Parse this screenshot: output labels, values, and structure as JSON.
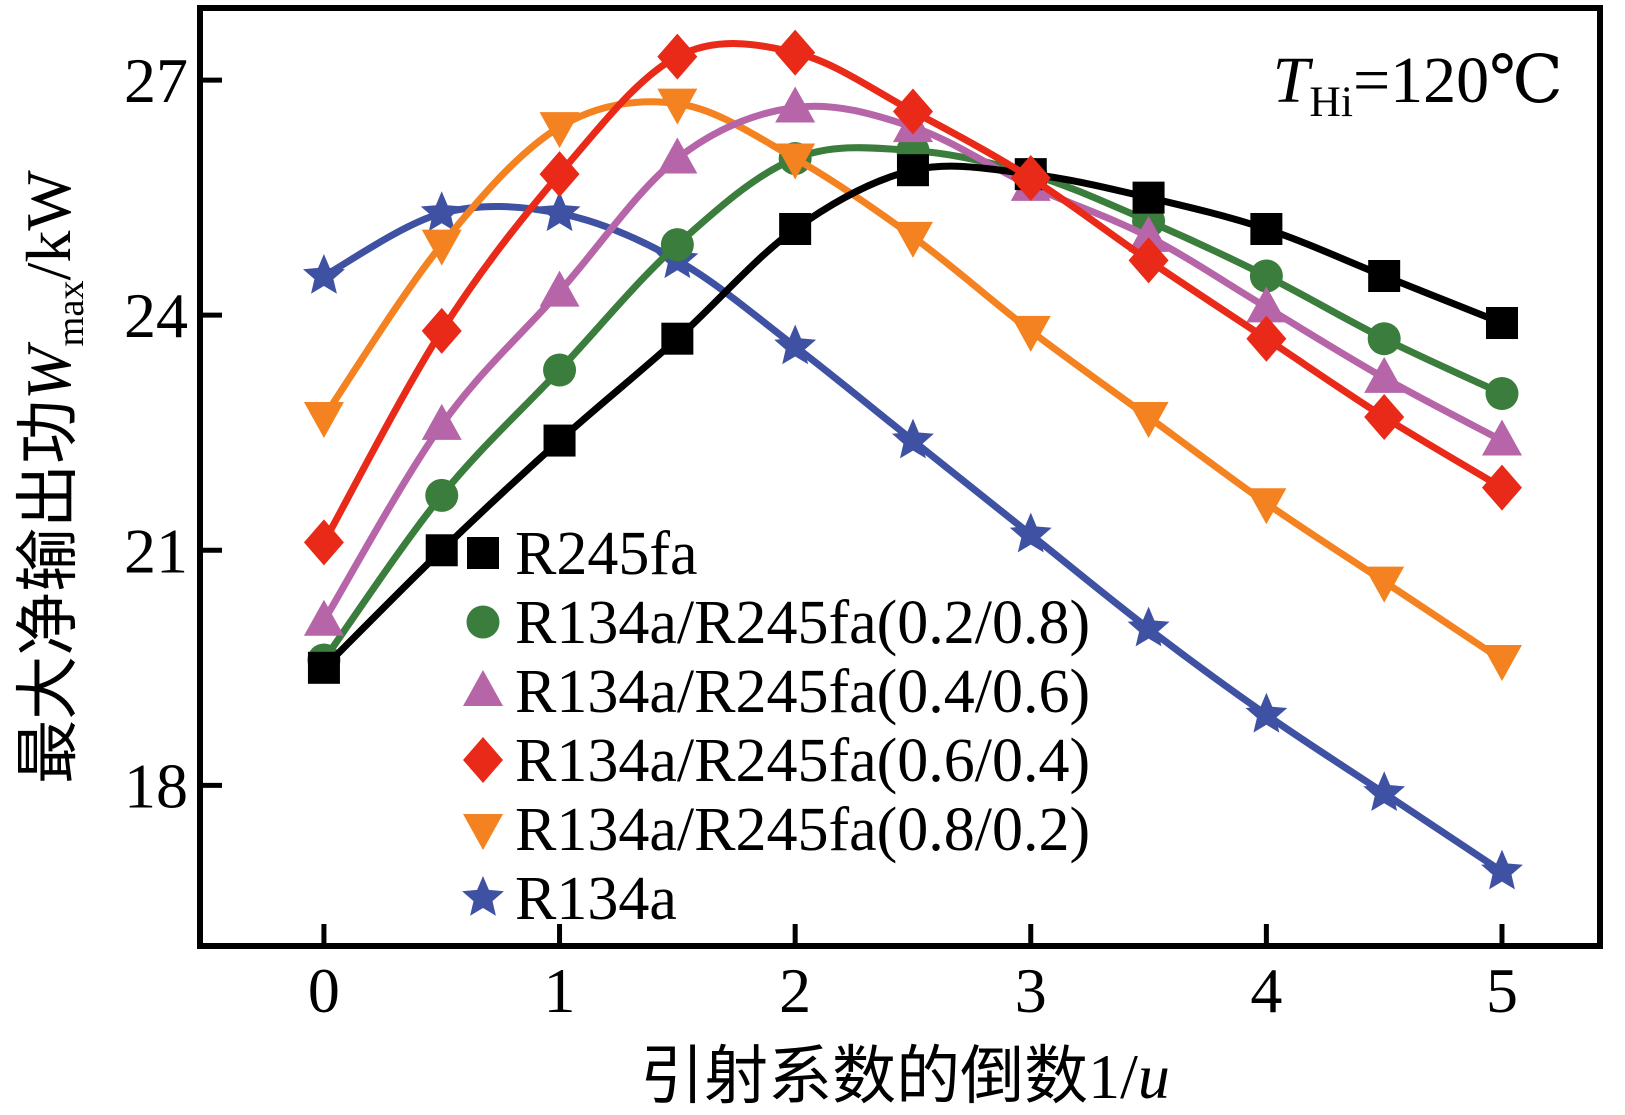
{
  "figure": {
    "background": "#ffffff",
    "annotation": {
      "var": "T",
      "sub": "Hi",
      "rest": "=120℃"
    }
  },
  "chart_data": {
    "type": "line",
    "title": "",
    "xlabel_parts": {
      "prefix": "引射系数的倒数1/",
      "var": "u"
    },
    "ylabel_parts": {
      "prefix": "最大净输出功",
      "var": "W",
      "var_sub": "max",
      "suffix": "/kW"
    },
    "x": [
      0,
      0.5,
      1,
      1.5,
      2,
      2.5,
      3,
      3.5,
      4,
      4.5,
      5
    ],
    "xticks": [
      0,
      1,
      2,
      3,
      4,
      5
    ],
    "yticks": [
      18,
      21,
      24,
      27
    ],
    "xlim": [
      -0.526,
      5.416
    ],
    "ylim": [
      15.95,
      27.92
    ],
    "grid": false,
    "legend_position": "inside-lower-left",
    "series": [
      {
        "name": "R245fa",
        "color": "#000000",
        "marker": "square",
        "values": [
          19.5,
          21.0,
          22.4,
          23.7,
          25.1,
          25.85,
          25.8,
          25.5,
          25.1,
          24.5,
          23.9
        ]
      },
      {
        "name": "R134a/R245fa(0.2/0.8)",
        "color": "#3b7d3c",
        "marker": "circle",
        "values": [
          19.6,
          21.7,
          23.3,
          24.9,
          26.0,
          26.1,
          25.8,
          25.2,
          24.5,
          23.7,
          23.0
        ]
      },
      {
        "name": "R134a/R245fa(0.4/0.6)",
        "color": "#b565a8",
        "marker": "triangle-up",
        "values": [
          20.1,
          22.6,
          24.3,
          26.0,
          26.65,
          26.4,
          25.65,
          25.0,
          24.1,
          23.2,
          22.4
        ]
      },
      {
        "name": "R134a/R245fa(0.6/0.4)",
        "color": "#ea2a18",
        "marker": "diamond",
        "values": [
          21.1,
          23.8,
          25.8,
          27.3,
          27.35,
          26.6,
          25.75,
          24.7,
          23.7,
          22.7,
          21.8
        ]
      },
      {
        "name": "R134a/R245fa(0.8/0.2)",
        "color": "#f58220",
        "marker": "triangle-down",
        "values": [
          22.7,
          24.9,
          26.4,
          26.7,
          26.0,
          25.0,
          23.8,
          22.7,
          21.6,
          20.6,
          19.6
        ]
      },
      {
        "name": "R134a",
        "color": "#3f51a2",
        "marker": "star",
        "values": [
          24.5,
          25.3,
          25.3,
          24.7,
          23.6,
          22.4,
          21.2,
          20.0,
          18.9,
          17.9,
          16.9
        ]
      }
    ]
  }
}
